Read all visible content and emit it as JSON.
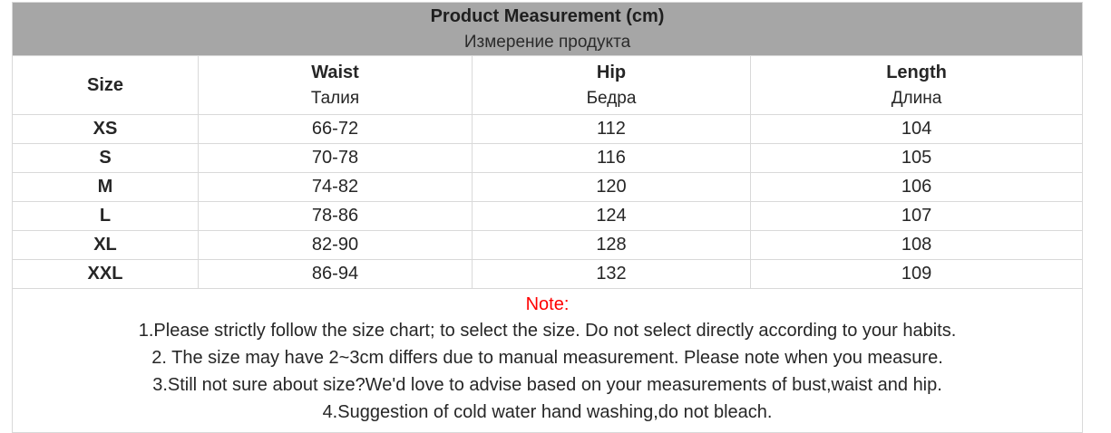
{
  "title": {
    "en": "Product Measurement (cm)",
    "ru": "Измерение продукта"
  },
  "table": {
    "columns": [
      {
        "en": "Size",
        "ru": ""
      },
      {
        "en": "Waist",
        "ru": "Талия"
      },
      {
        "en": "Hip",
        "ru": "Бедра"
      },
      {
        "en": "Length",
        "ru": "Длина"
      }
    ],
    "rows": [
      {
        "size": "XS",
        "waist": "66-72",
        "hip": "112",
        "length": "104"
      },
      {
        "size": "S",
        "waist": "70-78",
        "hip": "116",
        "length": "105"
      },
      {
        "size": "M",
        "waist": "74-82",
        "hip": "120",
        "length": "106"
      },
      {
        "size": "L",
        "waist": "78-86",
        "hip": "124",
        "length": "107"
      },
      {
        "size": "XL",
        "waist": "82-90",
        "hip": "128",
        "length": "108"
      },
      {
        "size": "XXL",
        "waist": "86-94",
        "hip": "132",
        "length": "109"
      }
    ]
  },
  "note": {
    "label": "Note:",
    "lines": [
      "1.Please strictly follow the size chart; to select the size. Do not select directly according to your habits.",
      "2. The size may have 2~3cm differs due to manual measurement. Please note when you measure.",
      "3.Still not sure about size?We'd love to advise based on your measurements of bust,waist and hip.",
      "4.Suggestion of cold water hand washing,do not bleach."
    ]
  },
  "colors": {
    "title_band_bg": "#a6a6a6",
    "border": "#d9d9d9",
    "note_red": "#ff0000",
    "text": "#262626"
  }
}
